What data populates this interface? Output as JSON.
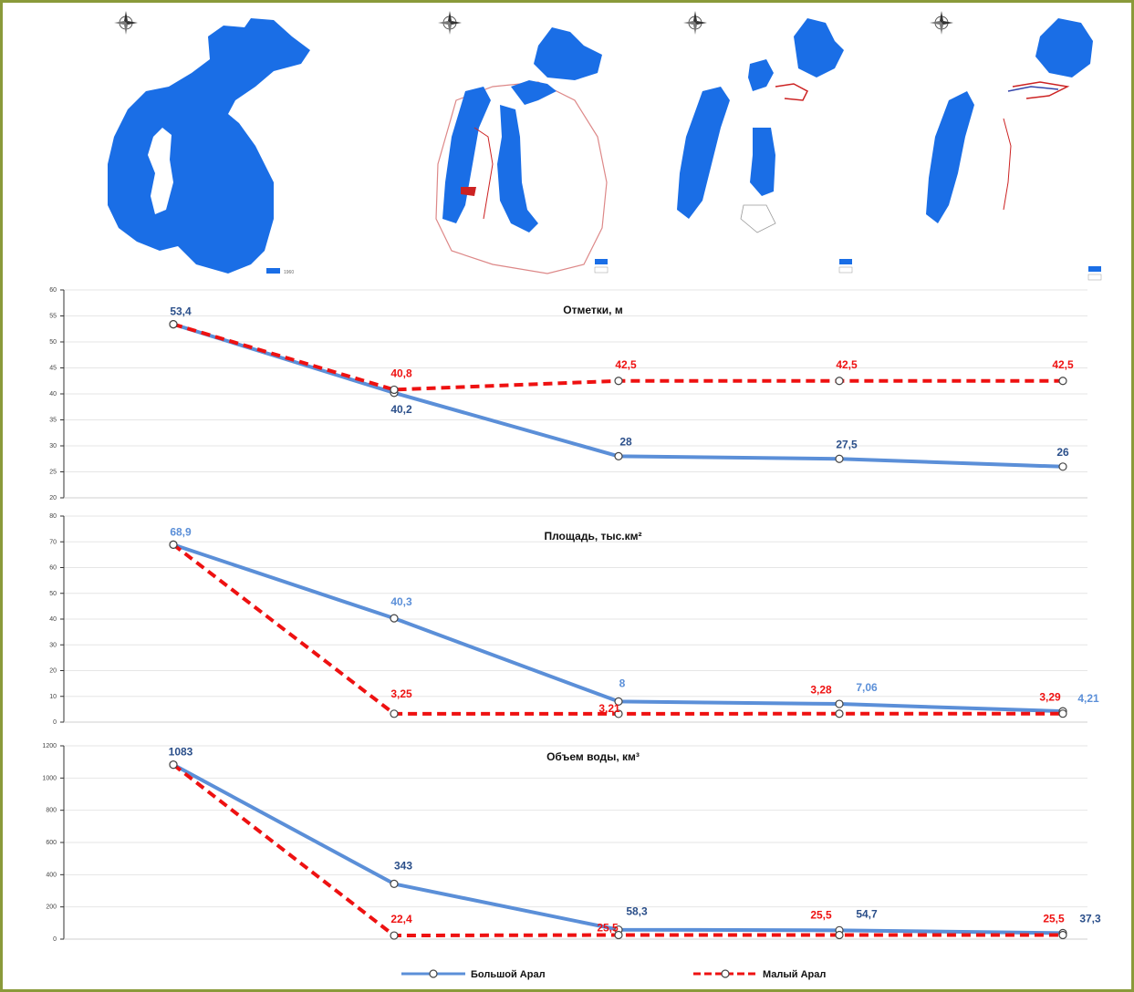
{
  "colors": {
    "blue": "#5b8fd8",
    "red": "#ee1111",
    "map_blue": "#1a6ee6",
    "frame": "#8a9a3a"
  },
  "maps": [
    {
      "compass_icon": "compass-rose-icon",
      "legend_label": "1960"
    },
    {
      "compass_icon": "compass-rose-icon",
      "legend_label": ""
    },
    {
      "compass_icon": "compass-rose-icon",
      "legend_label": ""
    },
    {
      "compass_icon": "compass-rose-icon",
      "legend_label": ""
    }
  ],
  "legend": [
    {
      "name": "Большой Арал",
      "color": "#5b8fd8",
      "dashed": false
    },
    {
      "name": "Малый Арал",
      "color": "#ee1111",
      "dashed": true
    }
  ],
  "chart_data": [
    {
      "type": "line",
      "title": "Отметки, м",
      "ylim": [
        20,
        60
      ],
      "yticks": [
        "20",
        "25",
        "30",
        "35",
        "40",
        "45",
        "50",
        "55",
        "60"
      ],
      "grid": true,
      "series": [
        {
          "name": "Большой Арал",
          "values": [
            53.4,
            40.2,
            28,
            27.5,
            26
          ],
          "labels": [
            "53,4",
            "40,2",
            "28",
            "27,5",
            "26"
          ]
        },
        {
          "name": "Малый Арал",
          "values": [
            53.4,
            40.8,
            42.5,
            42.5,
            42.5
          ],
          "labels": [
            "",
            "40,8",
            "42,5",
            "42,5",
            "42,5"
          ]
        }
      ]
    },
    {
      "type": "line",
      "title": "Площадь, тыс.км²",
      "ylim": [
        0,
        80
      ],
      "yticks": [
        "0",
        "10",
        "20",
        "30",
        "40",
        "50",
        "60",
        "70",
        "80"
      ],
      "grid": true,
      "series": [
        {
          "name": "Большой Арал",
          "values": [
            68.9,
            40.3,
            8,
            7.06,
            4.21
          ],
          "labels": [
            "68,9",
            "40,3",
            "8",
            "7,06",
            "4,21"
          ]
        },
        {
          "name": "Малый Арал",
          "values": [
            68.9,
            3.25,
            3.21,
            3.28,
            3.29
          ],
          "labels": [
            "",
            "3,25",
            "3,21",
            "3,28",
            "3,29"
          ]
        }
      ]
    },
    {
      "type": "line",
      "title": "Объем воды, км³",
      "ylim": [
        0,
        1200
      ],
      "yticks": [
        "0",
        "200",
        "400",
        "600",
        "800",
        "1000",
        "1200"
      ],
      "grid": true,
      "series": [
        {
          "name": "Большой Арал",
          "values": [
            1083,
            343,
            58.3,
            54.7,
            37.3
          ],
          "labels": [
            "1083",
            "343",
            "58,3",
            "54,7",
            "37,3"
          ]
        },
        {
          "name": "Малый Арал",
          "values": [
            1083,
            22.4,
            25.5,
            25.5,
            25.5
          ],
          "labels": [
            "",
            "22,4",
            "25,5",
            "25,5",
            "25,5"
          ]
        }
      ]
    }
  ]
}
